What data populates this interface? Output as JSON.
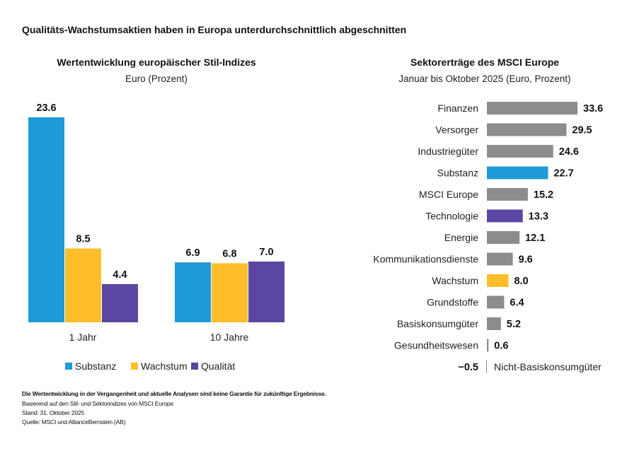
{
  "title": "Qualitäts-Wachstumsaktien haben in Europa unterdurchschnittlich abgeschnitten",
  "footer": {
    "disclaimer": "Die Wertentwicklung in der Vergangenheit und aktuelle Analysen sind keine Garantie für zukünftige Ergebnisse.",
    "basis": "Basierend auf den Stil- und Sektorindizes von MSCI Europe",
    "date": "Stand: 31. Oktober 2025",
    "source": "Quelle: MSCI und AllianceBernstein (AB)"
  },
  "colors": {
    "Substanz": "#1E9BD7",
    "Wachstum": "#FDBE29",
    "Qualität": "#5B47A2",
    "other": "#8C8C8C"
  },
  "chart_data": [
    {
      "type": "bar",
      "title": "Wertentwicklung europäischer Stil-Indizes",
      "subtitle": "Euro (Prozent)",
      "categories": [
        "1 Jahr",
        "10 Jahre"
      ],
      "series": [
        {
          "name": "Substanz",
          "values": [
            23.6,
            6.9
          ]
        },
        {
          "name": "Wachstum",
          "values": [
            8.5,
            6.8
          ]
        },
        {
          "name": "Qualität",
          "values": [
            4.4,
            7.0
          ]
        }
      ],
      "legend": "bottom",
      "grid": false
    },
    {
      "type": "bar",
      "orientation": "horizontal",
      "title": "Sektorerträge des MSCI Europe",
      "subtitle": "Januar bis Oktober 2025 (Euro, Prozent)",
      "categories": [
        "Finanzen",
        "Versorger",
        "Industriegüter",
        "Substanz",
        "MSCI Europe",
        "Technologie",
        "Energie",
        "Kommunikationsdienste",
        "Wachstum",
        "Grundstoffe",
        "Basiskonsumgüter",
        "Gesundheitswesen",
        "Nicht-Basiskonsumgüter"
      ],
      "values": [
        33.6,
        29.5,
        24.6,
        22.7,
        15.2,
        13.3,
        12.1,
        9.6,
        8.0,
        6.4,
        5.2,
        0.6,
        -0.5
      ],
      "labels": [
        "33.6",
        "29.5",
        "24.6",
        "22.7",
        "15.2",
        "13.3",
        "12.1",
        "9.6",
        "8.0",
        "6.4",
        "5.2",
        "0.6",
        "−0.5"
      ],
      "highlight": {
        "Substanz": "#1E9BD7",
        "Technologie": "#5B47A2",
        "Wachstum": "#FDBE29"
      },
      "grid": false
    }
  ]
}
